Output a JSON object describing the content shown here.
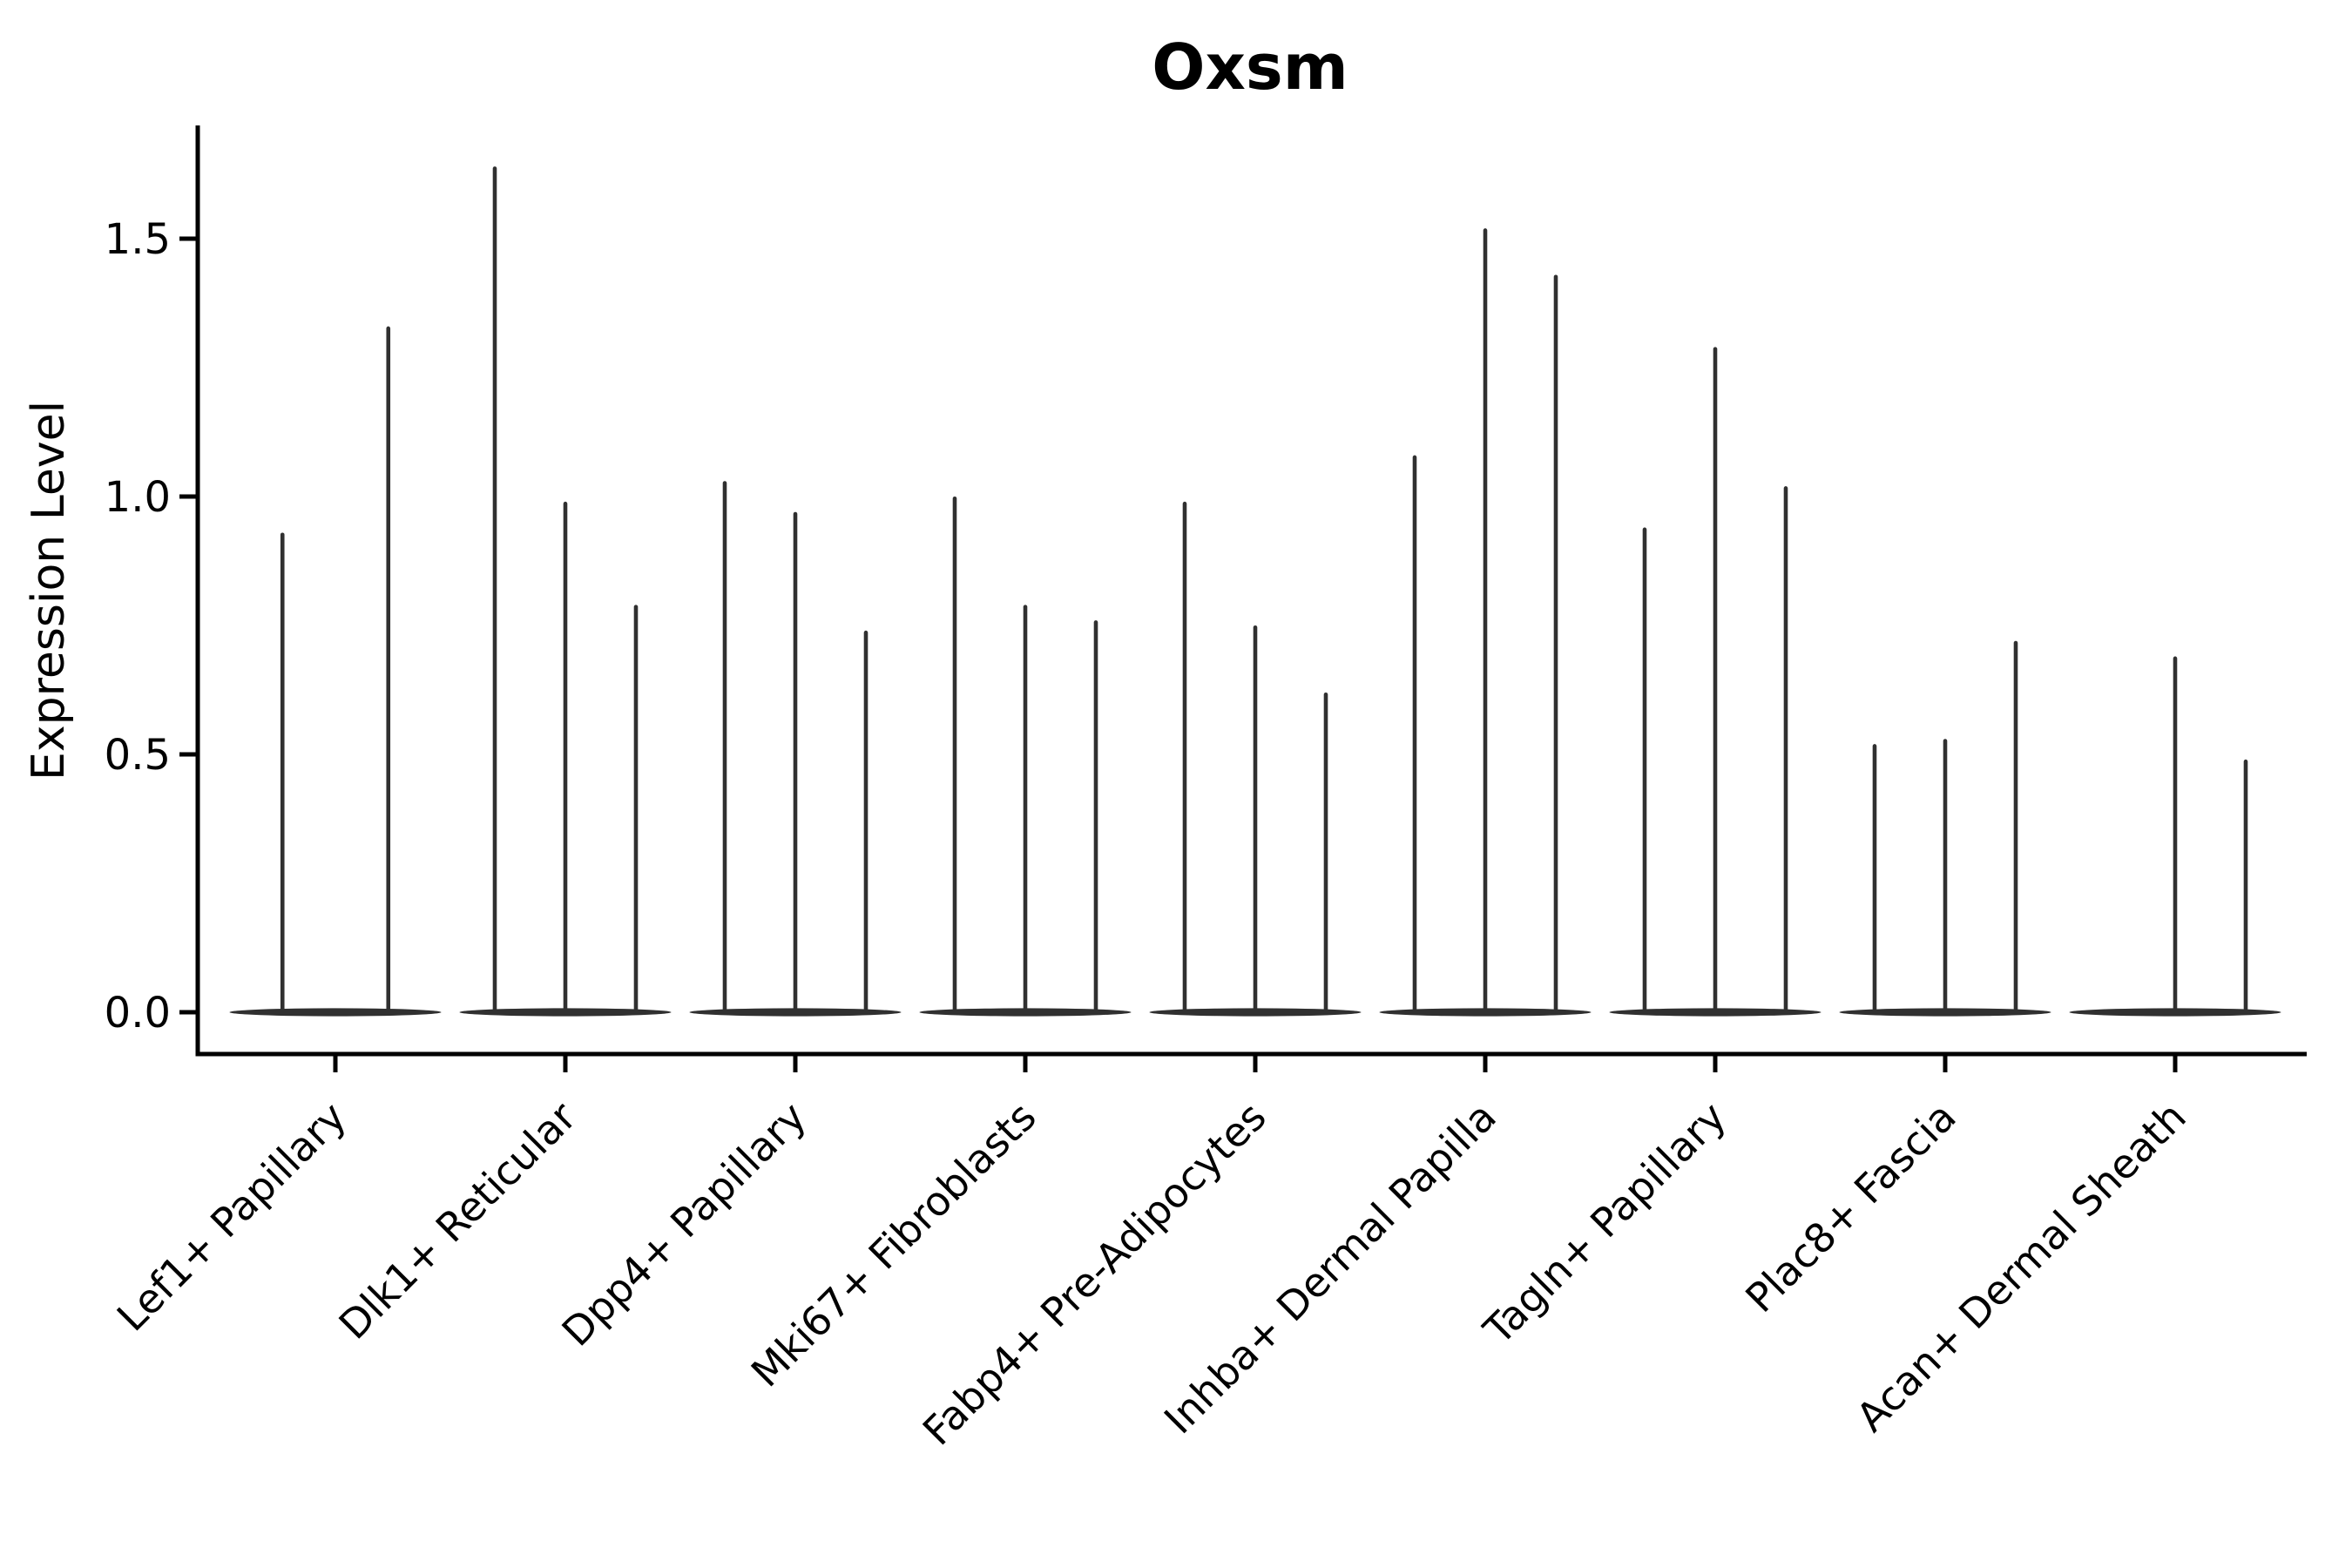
{
  "figure": {
    "background": "#ffffff"
  },
  "chart_data": {
    "type": "violin",
    "title": "Oxsm",
    "xlabel": "",
    "ylabel": "Expression Level",
    "ylim": [
      -0.08,
      1.72
    ],
    "yticks": [
      0.0,
      0.5,
      1.0,
      1.5
    ],
    "ytick_labels": [
      "0.0",
      "0.5",
      "1.0",
      "1.5"
    ],
    "xtick_rotation": 45,
    "grid": false,
    "baseline_value": 0.0,
    "colors": {
      "violin": "#303030",
      "axis": "#000000",
      "text": "#000000",
      "background": "#ffffff"
    },
    "categories": [
      "Lef1+ Papillary",
      "Dlk1+ Reticular",
      "Dpp4+ Papillary",
      "Mki67+ Fibroblasts",
      "Fabp4+ Pre-Adipocytes",
      "Inhba+ Dermal Papilla",
      "Tagln+ Papillary",
      "Plac8+ Fascia",
      "Acan+ Dermal Sheath"
    ],
    "violins": [
      {
        "category": "Lef1+ Papillary",
        "spike_values": [
          0.93,
          1.33
        ]
      },
      {
        "category": "Dlk1+ Reticular",
        "spike_values": [
          1.64,
          0.99,
          0.79
        ]
      },
      {
        "category": "Dpp4+ Papillary",
        "spike_values": [
          1.03,
          0.97,
          0.74
        ]
      },
      {
        "category": "Mki67+ Fibroblasts",
        "spike_values": [
          1.0,
          0.79,
          0.76
        ]
      },
      {
        "category": "Fabp4+ Pre-Adipocytes",
        "spike_values": [
          0.99,
          0.75,
          0.62
        ]
      },
      {
        "category": "Inhba+ Dermal Papilla",
        "spike_values": [
          1.08,
          1.52,
          1.43
        ]
      },
      {
        "category": "Tagln+ Papillary",
        "spike_values": [
          0.94,
          1.29,
          1.02
        ]
      },
      {
        "category": "Plac8+ Fascia",
        "spike_values": [
          0.52,
          0.53,
          0.72
        ]
      },
      {
        "category": "Acan+ Dermal Sheath",
        "spike_values": [
          null,
          0.69,
          0.49
        ]
      }
    ]
  }
}
